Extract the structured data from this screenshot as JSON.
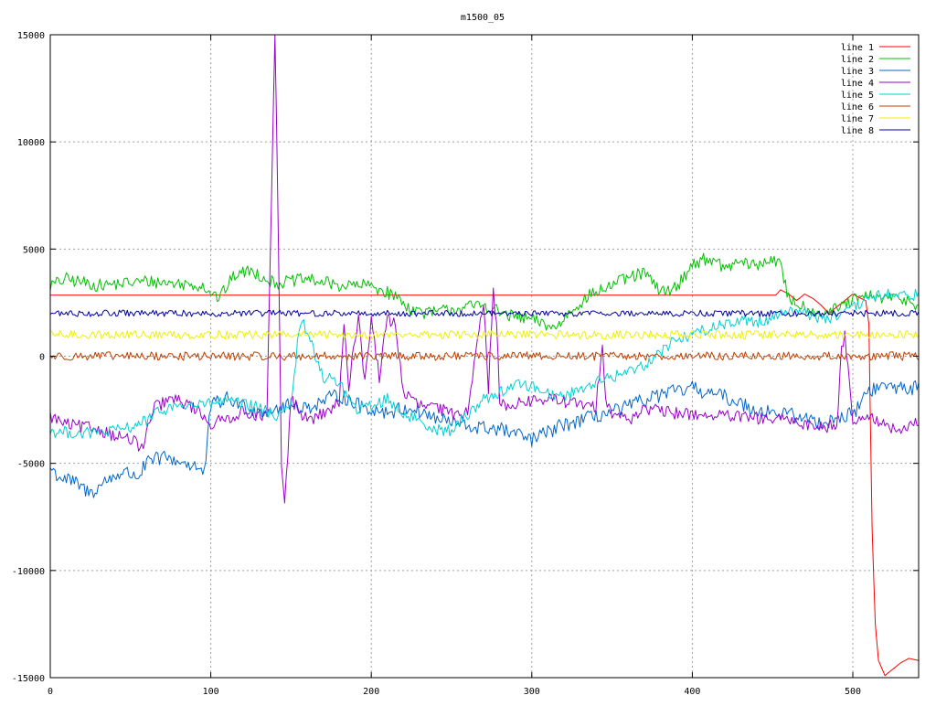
{
  "chart_data": {
    "type": "line",
    "title": "m1500_05",
    "xlabel": "",
    "ylabel": "",
    "xlim": [
      0,
      541
    ],
    "ylim": [
      -15000,
      15000
    ],
    "x_ticks": [
      0,
      100,
      200,
      300,
      400,
      500
    ],
    "y_ticks": [
      -15000,
      -10000,
      -5000,
      0,
      5000,
      10000,
      15000
    ],
    "grid": true,
    "legend_position": "top-right",
    "series": [
      {
        "name": "line 1",
        "color": "#ff0000",
        "x": [
          0,
          100,
          200,
          300,
          400,
          452,
          455,
          460,
          465,
          470,
          475,
          480,
          485,
          490,
          495,
          500,
          505,
          508,
          510,
          512,
          514,
          516,
          520,
          525,
          530,
          535,
          541
        ],
        "y": [
          2850,
          2850,
          2850,
          2850,
          2850,
          2850,
          3100,
          2900,
          2600,
          2900,
          2700,
          2400,
          2000,
          2300,
          2600,
          2900,
          2700,
          2600,
          1500,
          -8000,
          -12500,
          -14200,
          -14900,
          -14600,
          -14300,
          -14100,
          -14200
        ],
        "noise": 0
      },
      {
        "name": "line 2",
        "color": "#00c000",
        "x": [
          0,
          10,
          30,
          60,
          95,
          105,
          115,
          125,
          140,
          160,
          180,
          200,
          215,
          225,
          235,
          250,
          270,
          285,
          300,
          315,
          325,
          335,
          355,
          370,
          380,
          390,
          400,
          410,
          420,
          430,
          440,
          450,
          455,
          460,
          470,
          480,
          490,
          500,
          510,
          520,
          530,
          541
        ],
        "y": [
          3300,
          3600,
          3300,
          3500,
          3300,
          2700,
          3800,
          4000,
          3400,
          3600,
          3300,
          3300,
          2800,
          2200,
          2000,
          2200,
          2400,
          1900,
          1700,
          1300,
          2200,
          2800,
          3500,
          3900,
          3000,
          3200,
          4300,
          4600,
          4100,
          4400,
          4200,
          4600,
          4200,
          2700,
          2300,
          2000,
          2200,
          2600,
          2800,
          2700,
          2700,
          2400
        ],
        "noise": 300
      },
      {
        "name": "line 3",
        "color": "#0066cc",
        "x": [
          0,
          5,
          15,
          25,
          35,
          45,
          55,
          60,
          70,
          80,
          90,
          96,
          100,
          110,
          130,
          150,
          160,
          180,
          195,
          210,
          225,
          240,
          260,
          280,
          300,
          320,
          330,
          340,
          355,
          365,
          380,
          400,
          420,
          440,
          460,
          480,
          490,
          500,
          510,
          520,
          541
        ],
        "y": [
          -5200,
          -5600,
          -5900,
          -6400,
          -5800,
          -5400,
          -5600,
          -5000,
          -4700,
          -4900,
          -5100,
          -5500,
          -2300,
          -2000,
          -2600,
          -2300,
          -2400,
          -1800,
          -2400,
          -2600,
          -2400,
          -2900,
          -3300,
          -3400,
          -3900,
          -3200,
          -3000,
          -2800,
          -2500,
          -2200,
          -1800,
          -1500,
          -1900,
          -2500,
          -2700,
          -3100,
          -2900,
          -2700,
          -1600,
          -1400,
          -1500
        ],
        "noise": 350
      },
      {
        "name": "line 4",
        "color": "#9900cc",
        "x": [
          0,
          10,
          20,
          30,
          40,
          50,
          58,
          62,
          65,
          75,
          85,
          95,
          100,
          120,
          135,
          138,
          140,
          142,
          144,
          146,
          150,
          155,
          160,
          170,
          180,
          183,
          186,
          189,
          192,
          196,
          200,
          205,
          210,
          215,
          220,
          230,
          240,
          250,
          260,
          268,
          270,
          273,
          276,
          278,
          280,
          290,
          300,
          310,
          320,
          340,
          344,
          346,
          350,
          360,
          370,
          380,
          400,
          420,
          440,
          460,
          480,
          490,
          493,
          495,
          498,
          500,
          505,
          510,
          520,
          530,
          541
        ],
        "y": [
          -2800,
          -3200,
          -3300,
          -3400,
          -3700,
          -3900,
          -4300,
          -3000,
          -2400,
          -2000,
          -2200,
          -2700,
          -3200,
          -2600,
          -2800,
          8000,
          15000,
          6000,
          -5000,
          -7000,
          -2000,
          -2500,
          -3000,
          -2700,
          -2200,
          1500,
          -1800,
          500,
          1900,
          -1200,
          1800,
          -1000,
          1800,
          1500,
          -1700,
          -2300,
          -2400,
          -2700,
          -2600,
          2000,
          2400,
          -1500,
          2900,
          1800,
          -2300,
          -2200,
          -2100,
          -2000,
          -2100,
          -2400,
          800,
          -2000,
          -2600,
          -3000,
          -2400,
          -2600,
          -2700,
          -2800,
          -2900,
          -3000,
          -3300,
          -3200,
          300,
          1200,
          -1500,
          -3000,
          -2900,
          -2700,
          -3300,
          -3500,
          -3100
        ],
        "noise": 300
      },
      {
        "name": "line 5",
        "color": "#00d0d0",
        "x": [
          0,
          20,
          40,
          50,
          60,
          70,
          80,
          90,
          100,
          110,
          130,
          140,
          150,
          155,
          158,
          162,
          170,
          180,
          190,
          200,
          210,
          220,
          230,
          240,
          250,
          260,
          270,
          280,
          290,
          300,
          310,
          320,
          330,
          340,
          350,
          360,
          370,
          380,
          390,
          400,
          410,
          420,
          430,
          440,
          450,
          460,
          470,
          480,
          490,
          500,
          510,
          520,
          530,
          541
        ],
        "y": [
          -3500,
          -3600,
          -3500,
          -3300,
          -3000,
          -2500,
          -2300,
          -2300,
          -2200,
          -2100,
          -2400,
          -2800,
          -2200,
          1200,
          1500,
          700,
          -1000,
          -1200,
          -2500,
          -2300,
          -2000,
          -2700,
          -3000,
          -3400,
          -3500,
          -2700,
          -2000,
          -1700,
          -1300,
          -1400,
          -1700,
          -1900,
          -1500,
          -1200,
          -1000,
          -700,
          -400,
          200,
          800,
          1000,
          1300,
          1500,
          1700,
          1600,
          1800,
          2200,
          2000,
          1800,
          1800,
          2200,
          2700,
          2900,
          2800,
          2900
        ],
        "noise": 280
      },
      {
        "name": "line 6",
        "color": "#c04000",
        "x": [
          0,
          541
        ],
        "y": [
          0,
          0
        ],
        "noise": 200
      },
      {
        "name": "line 7",
        "color": "#f0f000",
        "x": [
          0,
          541
        ],
        "y": [
          1000,
          1000
        ],
        "noise": 200
      },
      {
        "name": "line 8",
        "color": "#0000a0",
        "x": [
          0,
          541
        ],
        "y": [
          2000,
          2000
        ],
        "noise": 150
      }
    ]
  }
}
